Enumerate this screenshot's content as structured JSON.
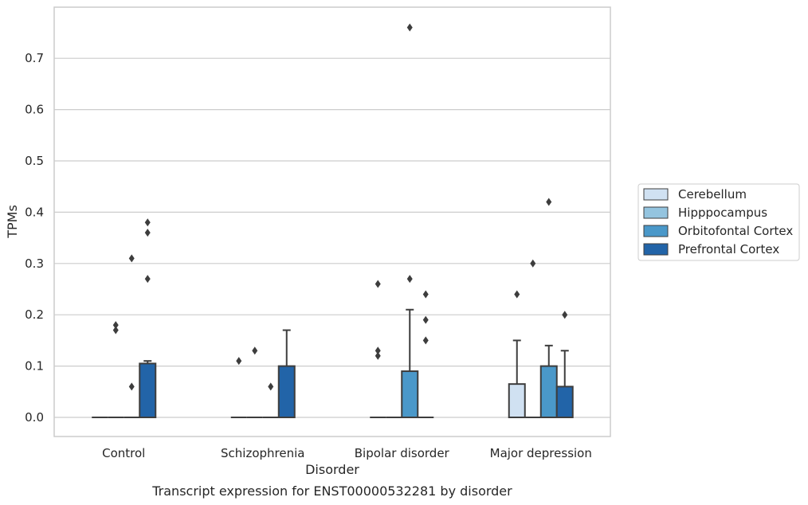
{
  "chart_data": {
    "type": "box",
    "caption": "Transcript expression for ENST00000532281 by disorder",
    "xlabel": "Disorder",
    "ylabel": "TPMs",
    "ylim": [
      -0.037,
      0.8
    ],
    "yticks": [
      0.0,
      0.1,
      0.2,
      0.3,
      0.4,
      0.5,
      0.6,
      0.7
    ],
    "ytick_labels": [
      "0.0",
      "0.1",
      "0.2",
      "0.3",
      "0.4",
      "0.5",
      "0.6",
      "0.7"
    ],
    "grid": "horizontal",
    "legend_position": "right",
    "categories": [
      "Control",
      "Schizophrenia",
      "Bipolar disorder",
      "Major depression"
    ],
    "series": [
      {
        "name": "Cerebellum",
        "color": "#d0e1f2",
        "boxes": [
          {
            "q1": 0,
            "median": 0,
            "q3": 0,
            "whisker_low": 0,
            "whisker_high": 0,
            "outliers": []
          },
          {
            "q1": 0,
            "median": 0,
            "q3": 0,
            "whisker_low": 0,
            "whisker_high": 0,
            "outliers": [
              0.11
            ]
          },
          {
            "q1": 0,
            "median": 0,
            "q3": 0,
            "whisker_low": 0,
            "whisker_high": 0,
            "outliers": [
              0.12,
              0.13,
              0.26
            ]
          },
          {
            "q1": 0,
            "median": 0,
            "q3": 0.065,
            "whisker_low": 0,
            "whisker_high": 0.15,
            "outliers": [
              0.24
            ]
          }
        ]
      },
      {
        "name": "Hipppocampus",
        "color": "#94c4df",
        "boxes": [
          {
            "q1": 0,
            "median": 0,
            "q3": 0,
            "whisker_low": 0,
            "whisker_high": 0,
            "outliers": [
              0.17,
              0.18
            ]
          },
          {
            "q1": 0,
            "median": 0,
            "q3": 0,
            "whisker_low": 0,
            "whisker_high": 0,
            "outliers": [
              0.13
            ]
          },
          {
            "q1": 0,
            "median": 0,
            "q3": 0,
            "whisker_low": 0,
            "whisker_high": 0,
            "outliers": []
          },
          {
            "q1": 0,
            "median": 0,
            "q3": 0,
            "whisker_low": 0,
            "whisker_high": 0,
            "outliers": [
              0.3
            ]
          }
        ]
      },
      {
        "name": "Orbitofontal Cortex",
        "color": "#4a98c9",
        "boxes": [
          {
            "q1": 0,
            "median": 0,
            "q3": 0,
            "whisker_low": 0,
            "whisker_high": 0,
            "outliers": [
              0.06,
              0.31
            ]
          },
          {
            "q1": 0,
            "median": 0,
            "q3": 0,
            "whisker_low": 0,
            "whisker_high": 0,
            "outliers": [
              0.06
            ]
          },
          {
            "q1": 0,
            "median": 0,
            "q3": 0.09,
            "whisker_low": 0,
            "whisker_high": 0.21,
            "outliers": [
              0.27,
              0.76
            ]
          },
          {
            "q1": 0,
            "median": 0,
            "q3": 0.1,
            "whisker_low": 0,
            "whisker_high": 0.14,
            "outliers": [
              0.42
            ]
          }
        ]
      },
      {
        "name": "Prefrontal Cortex",
        "color": "#2264a8",
        "boxes": [
          {
            "q1": 0,
            "median": 0,
            "q3": 0.105,
            "whisker_low": 0,
            "whisker_high": 0.11,
            "outliers": [
              0.27,
              0.36,
              0.38
            ]
          },
          {
            "q1": 0,
            "median": 0,
            "q3": 0.1,
            "whisker_low": 0,
            "whisker_high": 0.17,
            "outliers": []
          },
          {
            "q1": 0,
            "median": 0,
            "q3": 0,
            "whisker_low": 0,
            "whisker_high": 0,
            "outliers": [
              0.15,
              0.19,
              0.24
            ]
          },
          {
            "q1": 0,
            "median": 0,
            "q3": 0.06,
            "whisker_low": 0,
            "whisker_high": 0.13,
            "outliers": [
              0.2
            ]
          }
        ]
      }
    ]
  }
}
